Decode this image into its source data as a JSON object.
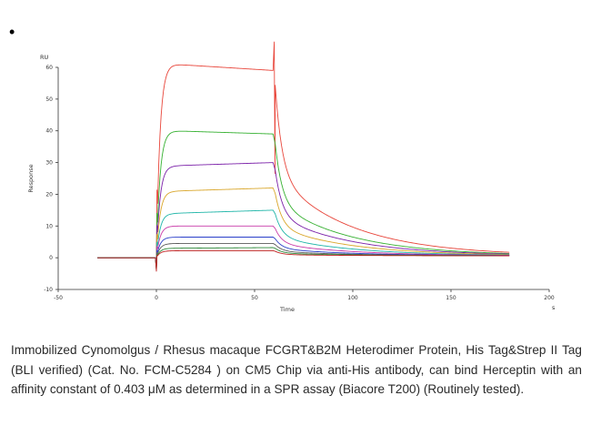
{
  "bullet": "•",
  "caption": "Immobilized Cynomolgus / Rhesus macaque FCGRT&B2M Heterodimer Protein, His Tag&Strep II Tag (BLI verified) (Cat. No. FCM-C5284 ) on CM5 Chip via anti-His antibody, can bind  Herceptin with an affinity constant of 0.403 μM as determined in a SPR assay (Biacore T200) (Routinely tested).",
  "chart_data": {
    "type": "line",
    "title": "",
    "xlabel": "Time",
    "ylabel": "Response",
    "y_unit": "RU",
    "x_unit": "s",
    "xlim": [
      -50,
      200
    ],
    "ylim": [
      -10,
      60
    ],
    "x_ticks": [
      "-50",
      "0",
      "50",
      "100",
      "150",
      "200"
    ],
    "y_ticks": [
      "-10",
      "0",
      "10",
      "20",
      "30",
      "40",
      "50",
      "60"
    ],
    "baseline_start": -30,
    "injection_start": 0,
    "injection_end": 60,
    "end": 180,
    "series": [
      {
        "color": "#e8463b",
        "plateau": 61,
        "end_value": 59,
        "peak": 68
      },
      {
        "color": "#35b030",
        "plateau": 40,
        "end_value": 39
      },
      {
        "color": "#7a1fa8",
        "plateau": 29,
        "end_value": 30
      },
      {
        "color": "#d9a62a",
        "plateau": 21,
        "end_value": 22
      },
      {
        "color": "#1fb5a8",
        "plateau": 14,
        "end_value": 15
      },
      {
        "color": "#c93aa8",
        "plateau": 10,
        "end_value": 10
      },
      {
        "color": "#2a3fc9",
        "plateau": 6.5,
        "end_value": 6.5
      },
      {
        "color": "#5a5a5a",
        "plateau": 4.5,
        "end_value": 4.5
      },
      {
        "color": "#2a8a3a",
        "plateau": 3,
        "end_value": 3.2
      },
      {
        "color": "#c02020",
        "plateau": 2.2,
        "end_value": 2.2
      }
    ]
  }
}
